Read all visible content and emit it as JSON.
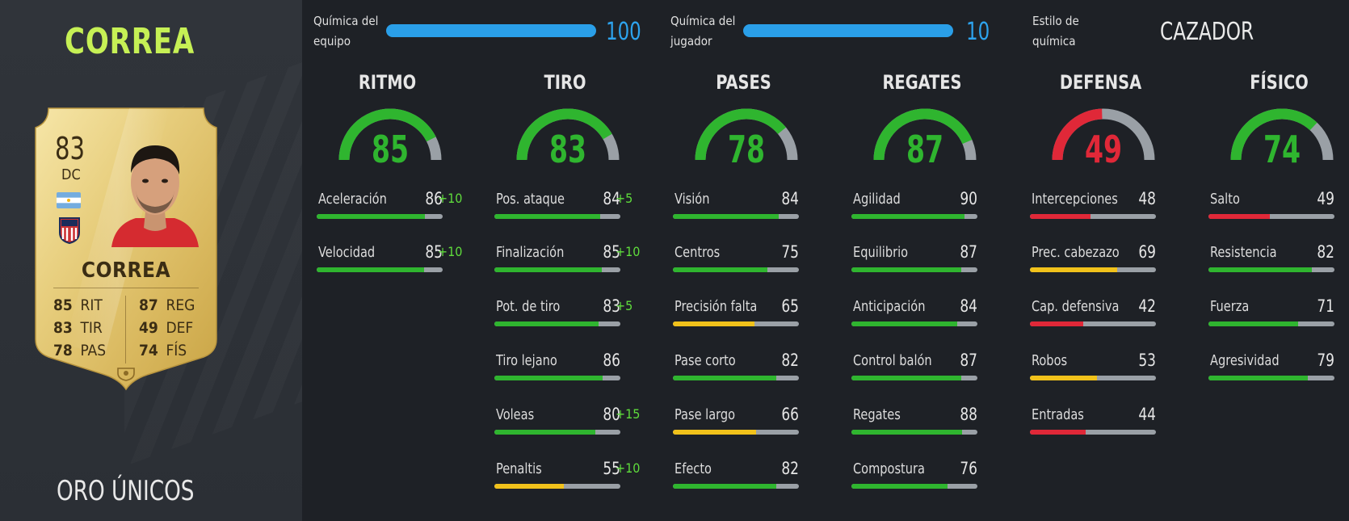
{
  "player": {
    "name": "CORREA",
    "rarity": "ORO ÚNICOS"
  },
  "card": {
    "rating": "83",
    "position": "DC",
    "name": "CORREA",
    "stats_left": [
      {
        "value": "85",
        "label": "RIT"
      },
      {
        "value": "83",
        "label": "TIR"
      },
      {
        "value": "78",
        "label": "PAS"
      }
    ],
    "stats_right": [
      {
        "value": "87",
        "label": "REG"
      },
      {
        "value": "49",
        "label": "DEF"
      },
      {
        "value": "74",
        "label": "FÍS"
      }
    ]
  },
  "chemistry": {
    "team_label_1": "Química del",
    "team_label_2": "equipo",
    "team_value": "100",
    "team_fraction": 1.0,
    "player_label_1": "Química del",
    "player_label_2": "jugador",
    "player_value": "10",
    "player_fraction": 1.0,
    "style_label_1": "Estilo de",
    "style_label_2": "química",
    "style_value": "CAZADOR"
  },
  "colors": {
    "green": "#2fb52f",
    "yellow": "#f1c21b",
    "red": "#e02838",
    "track": "#9aa0a6",
    "accent_blue": "#2da3ee",
    "name_green": "#c6f055"
  },
  "categories": [
    {
      "title": "RITMO",
      "value": "85",
      "level": "green",
      "stats": [
        {
          "label": "Aceleración",
          "value": "86",
          "boost": "+10",
          "level": "green"
        },
        {
          "label": "Velocidad",
          "value": "85",
          "boost": "+10",
          "level": "green"
        }
      ]
    },
    {
      "title": "TIRO",
      "value": "83",
      "level": "green",
      "stats": [
        {
          "label": "Pos. ataque",
          "value": "84",
          "boost": "+5",
          "level": "green"
        },
        {
          "label": "Finalización",
          "value": "85",
          "boost": "+10",
          "level": "green"
        },
        {
          "label": "Pot. de tiro",
          "value": "83",
          "boost": "+5",
          "level": "green"
        },
        {
          "label": "Tiro lejano",
          "value": "86",
          "boost": "",
          "level": "green"
        },
        {
          "label": "Voleas",
          "value": "80",
          "boost": "+15",
          "level": "green"
        },
        {
          "label": "Penaltis",
          "value": "55",
          "boost": "+10",
          "level": "yellow"
        }
      ]
    },
    {
      "title": "PASES",
      "value": "78",
      "level": "green",
      "stats": [
        {
          "label": "Visión",
          "value": "84",
          "boost": "",
          "level": "green"
        },
        {
          "label": "Centros",
          "value": "75",
          "boost": "",
          "level": "green"
        },
        {
          "label": "Precisión falta",
          "value": "65",
          "boost": "",
          "level": "yellow"
        },
        {
          "label": "Pase corto",
          "value": "82",
          "boost": "",
          "level": "green"
        },
        {
          "label": "Pase largo",
          "value": "66",
          "boost": "",
          "level": "yellow"
        },
        {
          "label": "Efecto",
          "value": "82",
          "boost": "",
          "level": "green"
        }
      ]
    },
    {
      "title": "REGATES",
      "value": "87",
      "level": "green",
      "stats": [
        {
          "label": "Agilidad",
          "value": "90",
          "boost": "",
          "level": "green"
        },
        {
          "label": "Equilibrio",
          "value": "87",
          "boost": "",
          "level": "green"
        },
        {
          "label": "Anticipación",
          "value": "84",
          "boost": "",
          "level": "green"
        },
        {
          "label": "Control balón",
          "value": "87",
          "boost": "",
          "level": "green"
        },
        {
          "label": "Regates",
          "value": "88",
          "boost": "",
          "level": "green"
        },
        {
          "label": "Compostura",
          "value": "76",
          "boost": "",
          "level": "green"
        }
      ]
    },
    {
      "title": "DEFENSA",
      "value": "49",
      "level": "red",
      "stats": [
        {
          "label": "Intercepciones",
          "value": "48",
          "boost": "",
          "level": "red"
        },
        {
          "label": "Prec. cabezazo",
          "value": "69",
          "boost": "",
          "level": "yellow"
        },
        {
          "label": "Cap. defensiva",
          "value": "42",
          "boost": "",
          "level": "red"
        },
        {
          "label": "Robos",
          "value": "53",
          "boost": "",
          "level": "yellow"
        },
        {
          "label": "Entradas",
          "value": "44",
          "boost": "",
          "level": "red"
        }
      ]
    },
    {
      "title": "FÍSICO",
      "value": "74",
      "level": "green",
      "stats": [
        {
          "label": "Salto",
          "value": "49",
          "boost": "",
          "level": "red"
        },
        {
          "label": "Resistencia",
          "value": "82",
          "boost": "",
          "level": "green"
        },
        {
          "label": "Fuerza",
          "value": "71",
          "boost": "",
          "level": "green"
        },
        {
          "label": "Agresividad",
          "value": "79",
          "boost": "",
          "level": "green"
        }
      ]
    }
  ]
}
